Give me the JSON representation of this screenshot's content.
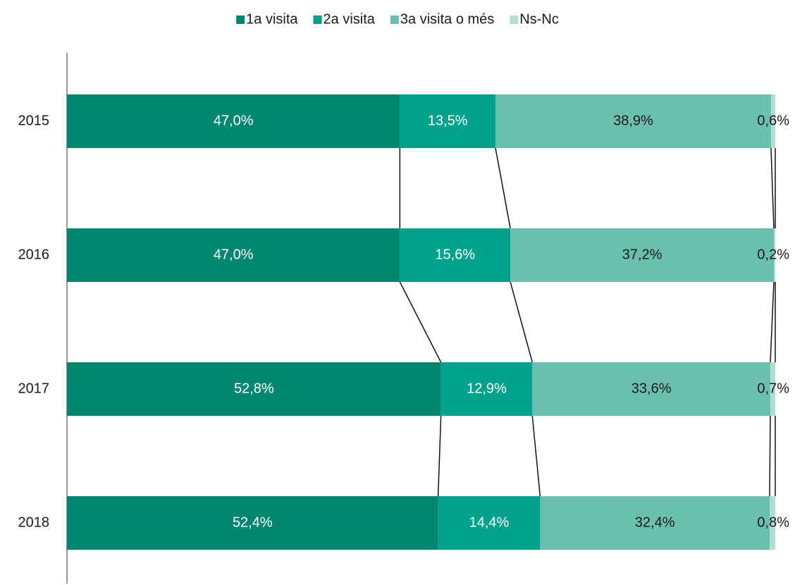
{
  "chart_data": {
    "type": "stacked-bar-horizontal",
    "categories": [
      "2015",
      "2016",
      "2017",
      "2018"
    ],
    "xlim": [
      0,
      100
    ],
    "series": [
      {
        "name": "1a visita",
        "color": "#00876f",
        "label_color": "#ffffff",
        "values": [
          47.0,
          47.0,
          52.8,
          52.4
        ],
        "value_labels": [
          "47,0%",
          "47,0%",
          "52,8%",
          "52,4%"
        ]
      },
      {
        "name": "2a visita",
        "color": "#00a18d",
        "label_color": "#ffffff",
        "values": [
          13.5,
          15.6,
          12.9,
          14.4
        ],
        "value_labels": [
          "13,5%",
          "15,6%",
          "12,9%",
          "14,4%"
        ]
      },
      {
        "name": "3a visita o més",
        "color": "#6bbfae",
        "label_color": "#1a1a1a",
        "values": [
          38.9,
          37.2,
          33.6,
          32.4
        ],
        "value_labels": [
          "38,9%",
          "37,2%",
          "33,6%",
          "32,4%"
        ]
      },
      {
        "name": "Ns-Nc",
        "color": "#b3ddd2",
        "label_color": "#1a1a1a",
        "values": [
          0.6,
          0.2,
          0.7,
          0.8
        ],
        "value_labels": [
          "0,6%",
          "0,2%",
          "0,7%",
          "0,8%"
        ]
      }
    ],
    "legend": "top"
  }
}
